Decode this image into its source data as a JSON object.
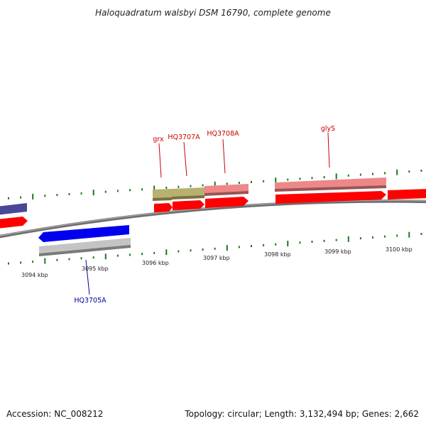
{
  "title": "Haloquadratum walsbyi DSM 16790, complete genome",
  "accession_label": "Accession: NC_008212",
  "topology_label": "Topology: circular; Length: 3,132,494 bp; Genes: 2,662",
  "colors": {
    "forward_gene": "#ff0000",
    "reverse_gene": "#0000ee",
    "reverse_gene_dark": "#4a4895",
    "feature_pink": "#ee8888",
    "feature_olive": "#b8b070",
    "feature_gray": "#c4c4c4",
    "backbone": "#808080",
    "tick": "#1a7a1a",
    "label_forward": "#cc0000",
    "label_reverse": "#000099"
  },
  "ticks": [
    {
      "label": "3094 kbp"
    },
    {
      "label": "3095 kbp"
    },
    {
      "label": "3096 kbp"
    },
    {
      "label": "3097 kbp"
    },
    {
      "label": "3098 kbp"
    },
    {
      "label": "3099 kbp"
    },
    {
      "label": "3100 kbp"
    }
  ],
  "gene_labels": [
    {
      "name": "grx",
      "strand": "forward"
    },
    {
      "name": "HQ3707A",
      "strand": "forward"
    },
    {
      "name": "HQ3708A",
      "strand": "forward"
    },
    {
      "name": "glyS",
      "strand": "forward"
    },
    {
      "name": "HQ3705A",
      "strand": "reverse"
    }
  ]
}
